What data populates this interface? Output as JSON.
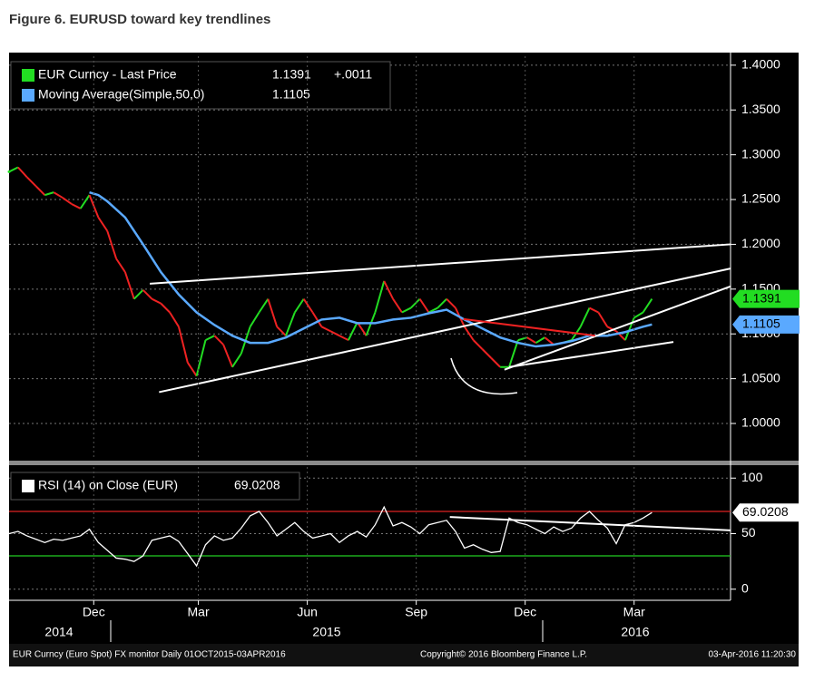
{
  "title": "Figure 6. EURUSD toward key trendlines",
  "chart_data": [
    {
      "type": "line",
      "x": [
        0,
        0.25,
        0.5,
        0.75,
        1,
        1.25,
        1.5,
        1.75,
        2,
        2.25,
        2.5,
        2.75,
        3,
        3.25,
        3.5,
        3.75,
        4,
        4.25,
        4.5,
        4.75,
        5,
        5.25,
        5.5,
        5.75,
        6,
        6.25,
        6.5,
        6.75,
        7,
        7.25,
        7.5,
        7.75,
        8,
        8.25,
        8.5,
        8.75,
        9,
        9.25,
        9.5,
        9.75,
        10,
        10.25,
        10.5,
        10.75,
        11,
        11.25,
        11.5,
        11.75,
        12,
        12.25,
        12.5,
        12.75,
        13,
        13.25,
        13.5,
        13.75,
        14,
        14.25,
        14.5,
        14.75,
        15,
        15.25,
        15.5,
        15.75,
        16,
        16.25,
        16.5,
        16.75,
        17,
        17.25,
        17.5,
        17.75,
        18
      ],
      "series": [
        {
          "name": "EUR Curncy - Last Price",
          "change": "+.0011",
          "color": "#22dd22",
          "down_color": "#ee2222",
          "values": [
            1.281,
            1.286,
            1.275,
            1.265,
            1.255,
            1.258,
            1.252,
            1.245,
            1.24,
            1.255,
            1.23,
            1.215,
            1.184,
            1.169,
            1.139,
            1.149,
            1.139,
            1.134,
            1.124,
            1.108,
            1.068,
            1.053,
            1.093,
            1.098,
            1.088,
            1.063,
            1.078,
            1.108,
            1.124,
            1.139,
            1.108,
            1.098,
            1.124,
            1.139,
            1.124,
            1.108,
            1.103,
            1.098,
            1.093,
            1.113,
            1.098,
            1.124,
            1.159,
            1.139,
            1.124,
            1.129,
            1.139,
            1.124,
            1.129,
            1.139,
            1.129,
            1.108,
            1.093,
            1.083,
            1.073,
            1.063,
            1.063,
            1.093,
            1.096,
            1.09,
            1.096,
            1.088,
            1.09,
            1.093,
            1.108,
            1.129,
            1.124,
            1.108,
            1.103,
            1.093,
            1.118,
            1.124,
            1.1391
          ]
        },
        {
          "name": "Moving Average(Simple,50,0)",
          "color": "#5aa9ff",
          "x": [
            2.25,
            2.5,
            2.75,
            3.25,
            3.75,
            4.25,
            4.75,
            5.25,
            5.75,
            6.25,
            6.75,
            7.25,
            7.75,
            8.25,
            8.75,
            9.25,
            9.75,
            10.25,
            10.75,
            11.25,
            11.75,
            12.25,
            12.75,
            13.25,
            13.75,
            14.25,
            14.75,
            15.25,
            15.75,
            16.25,
            16.75,
            17.25,
            17.75,
            18
          ],
          "values": [
            1.258,
            1.255,
            1.248,
            1.23,
            1.2,
            1.169,
            1.144,
            1.124,
            1.11,
            1.098,
            1.09,
            1.09,
            1.096,
            1.106,
            1.116,
            1.118,
            1.112,
            1.112,
            1.116,
            1.118,
            1.123,
            1.127,
            1.116,
            1.106,
            1.096,
            1.09,
            1.086,
            1.088,
            1.092,
            1.098,
            1.098,
            1.102,
            1.108,
            1.1105
          ]
        }
      ],
      "xlim": [
        0,
        20.2
      ],
      "ylim": [
        0.9595,
        1.41
      ],
      "yticks": [
        {
          "value": 1.0,
          "label": "1.0000"
        },
        {
          "value": 1.05,
          "label": "1.0500"
        },
        {
          "value": 1.1,
          "label": "1.1000"
        },
        {
          "value": 1.15,
          "label": "1.1500"
        },
        {
          "value": 1.2,
          "label": "1.2000"
        },
        {
          "value": 1.25,
          "label": "1.2500"
        },
        {
          "value": 1.3,
          "label": "1.3000"
        },
        {
          "value": 1.35,
          "label": "1.3500"
        },
        {
          "value": 1.4,
          "label": "1.4000"
        }
      ],
      "grid": true,
      "trendlines": [
        {
          "color": "#ffffff",
          "x": [
            3.94,
            20.2
          ],
          "y": [
            1.156,
            1.2
          ]
        },
        {
          "color": "#ffffff",
          "x": [
            4.2,
            20.2
          ],
          "y": [
            1.035,
            1.173
          ]
        },
        {
          "color": "#ffffff",
          "x": [
            13.87,
            20.2
          ],
          "y": [
            1.06,
            1.153
          ]
        },
        {
          "color": "#ffffff",
          "x": [
            14.0,
            18.6
          ],
          "y": [
            1.063,
            1.091
          ]
        },
        {
          "color": "#ee2222",
          "x": [
            12.72,
            16.41
          ],
          "y": [
            1.1165,
            1.098
          ]
        }
      ]
    },
    {
      "type": "line",
      "x": [
        0,
        0.25,
        0.5,
        0.75,
        1,
        1.25,
        1.5,
        1.75,
        2,
        2.25,
        2.5,
        2.75,
        3,
        3.25,
        3.5,
        3.75,
        4,
        4.25,
        4.5,
        4.75,
        5,
        5.25,
        5.5,
        5.75,
        6,
        6.25,
        6.5,
        6.75,
        7,
        7.25,
        7.5,
        7.75,
        8,
        8.25,
        8.5,
        8.75,
        9,
        9.25,
        9.5,
        9.75,
        10,
        10.25,
        10.5,
        10.75,
        11,
        11.25,
        11.5,
        11.75,
        12,
        12.25,
        12.5,
        12.75,
        13,
        13.25,
        13.5,
        13.75,
        14,
        14.25,
        14.5,
        14.75,
        15,
        15.25,
        15.5,
        15.75,
        16,
        16.25,
        16.5,
        16.75,
        17,
        17.25,
        17.5,
        17.75,
        18
      ],
      "series": [
        {
          "name": "RSI (14) on Close (EUR)",
          "color": "#ffffff",
          "values": [
            50,
            52,
            48,
            45,
            42,
            45,
            44,
            46,
            48,
            54,
            42,
            35,
            28,
            27,
            25,
            30,
            44,
            46,
            48,
            43,
            32,
            21,
            40,
            48,
            44,
            46,
            55,
            66,
            70,
            60,
            48,
            54,
            60,
            52,
            46,
            48,
            50,
            42,
            48,
            52,
            47,
            58,
            74,
            57,
            60,
            56,
            50,
            58,
            60,
            62,
            52,
            37,
            40,
            36,
            33,
            34,
            64,
            60,
            58,
            54,
            50,
            56,
            52,
            55,
            64,
            70,
            62,
            55,
            41,
            58,
            60,
            64,
            69.0208
          ]
        }
      ],
      "xlim": [
        0,
        20.2
      ],
      "ylim": [
        -10,
        110
      ],
      "yticks": [
        0,
        50,
        100
      ],
      "grid": true,
      "reference_lines": [
        {
          "value": 70,
          "color": "#dd2222"
        },
        {
          "value": 30,
          "color": "#22cc22"
        }
      ],
      "trendlines": [
        {
          "color": "#ffffff",
          "x": [
            12.34,
            20.2
          ],
          "y": [
            65,
            53
          ]
        }
      ],
      "xticks": [
        {
          "value": 2.37,
          "label": "Dec"
        },
        {
          "value": 5.3,
          "label": "Mar"
        },
        {
          "value": 8.35,
          "label": "Jun"
        },
        {
          "value": 11.4,
          "label": "Sep"
        },
        {
          "value": 14.45,
          "label": "Dec"
        },
        {
          "value": 17.5,
          "label": "Mar"
        }
      ],
      "year_labels": [
        "2014",
        "2015",
        "2016"
      ]
    }
  ],
  "footer": {
    "left": "EUR Curncy (Euro Spot) FX monitor  Daily 01OCT2015-03APR2016",
    "center": "Copyright© 2016 Bloomberg Finance L.P.",
    "right": "03-Apr-2016 11:20:30"
  }
}
